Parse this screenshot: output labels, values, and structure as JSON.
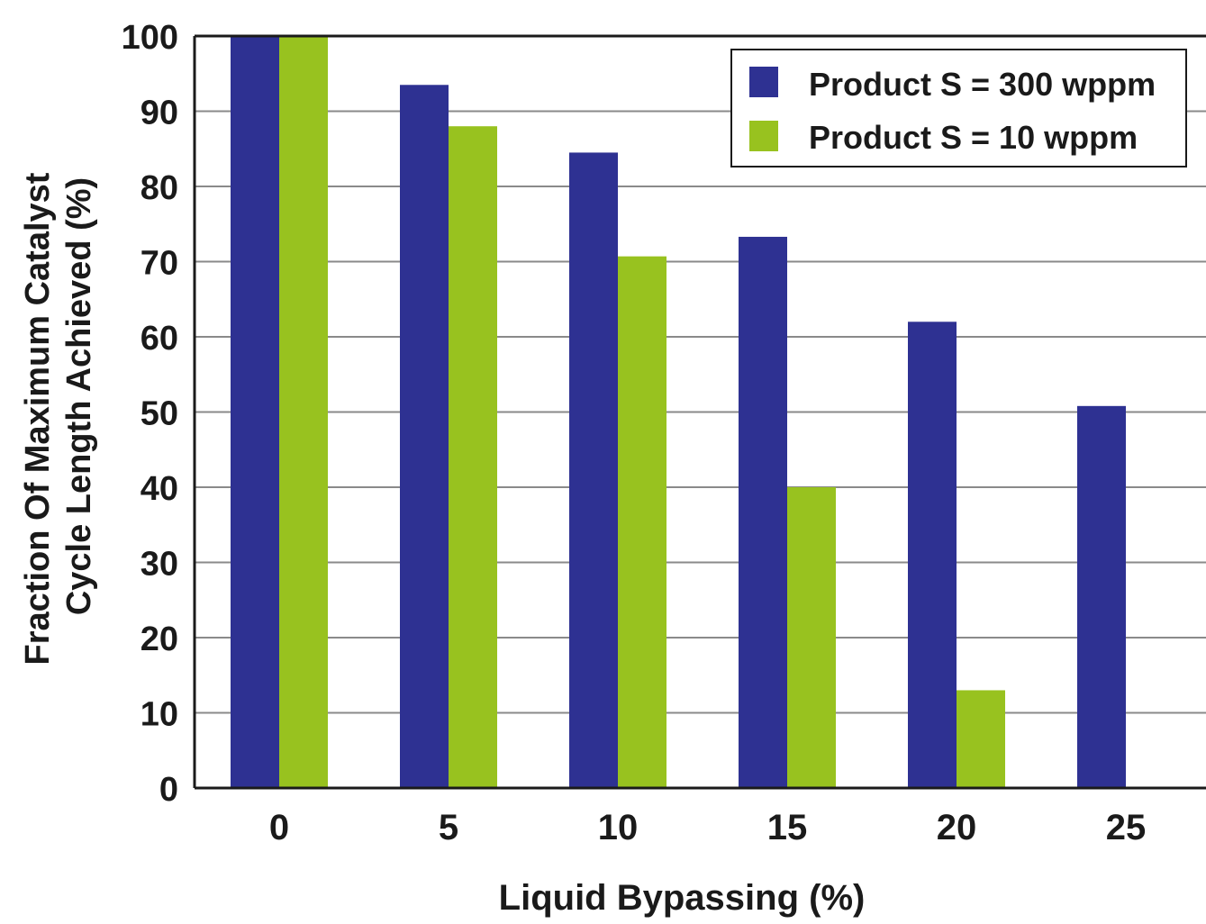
{
  "chart_data": {
    "type": "bar",
    "title": "",
    "xlabel": "Liquid Bypassing (%)",
    "ylabel_line1": "Fraction Of Maximum Catalyst",
    "ylabel_line2": "Cycle Length Achieved (%)",
    "categories": [
      "0",
      "5",
      "10",
      "15",
      "20",
      "25"
    ],
    "ylim": [
      0,
      100
    ],
    "yticks": [
      "0",
      "10",
      "20",
      "30",
      "40",
      "50",
      "60",
      "70",
      "80",
      "90",
      "100"
    ],
    "grid": "horizontal",
    "legend_position": "top-right",
    "series": [
      {
        "name": "Product S = 300 wppm",
        "color": "#2e3192",
        "values": [
          100,
          93.5,
          84.5,
          73.3,
          62,
          50.8
        ]
      },
      {
        "name": "Product S = 10 wppm",
        "color": "#98c21f",
        "values": [
          100,
          88,
          70.7,
          40,
          13,
          null
        ]
      }
    ]
  }
}
